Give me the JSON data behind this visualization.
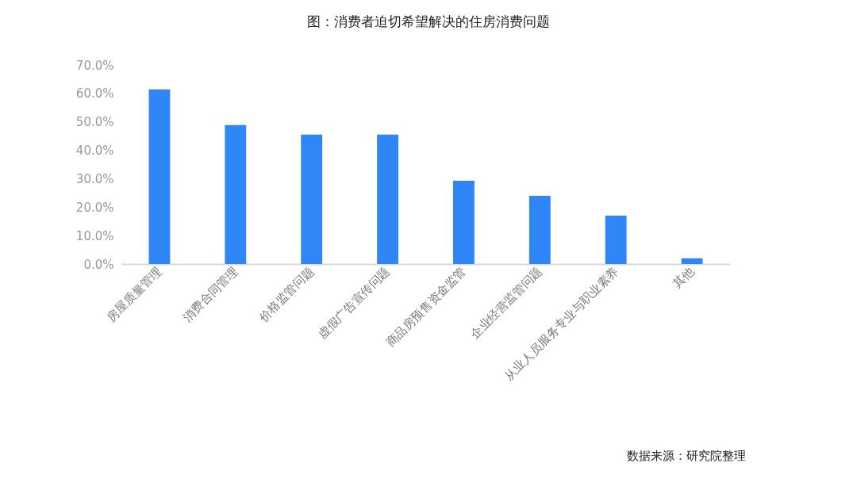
{
  "chart_data": {
    "type": "bar",
    "title": "图：消费者迫切希望解决的住房消费问题",
    "categories": [
      "房屋质量管理",
      "消费合同管理",
      "价格监管问题",
      "虚假广告宣传问题",
      "商品房预售资金监管",
      "企业经营监管问题",
      "从业人员服务专业与职业素养",
      "其他"
    ],
    "values": [
      61.4,
      48.9,
      45.5,
      45.5,
      29.3,
      24.0,
      17.0,
      2.0
    ],
    "color": "#2f86f6",
    "ylim": [
      0,
      70
    ],
    "yticks": [
      {
        "value": 0,
        "label": "0.0%"
      },
      {
        "value": 10,
        "label": "10.0%"
      },
      {
        "value": 20,
        "label": "20.0%"
      },
      {
        "value": 30,
        "label": "30.0%"
      },
      {
        "value": 40,
        "label": "40.0%"
      },
      {
        "value": 50,
        "label": "50.0%"
      },
      {
        "value": 60,
        "label": "60.0%"
      },
      {
        "value": 70,
        "label": "70.0%"
      }
    ],
    "grid": false,
    "annotations": [
      "数据来源：研究院整理"
    ]
  }
}
